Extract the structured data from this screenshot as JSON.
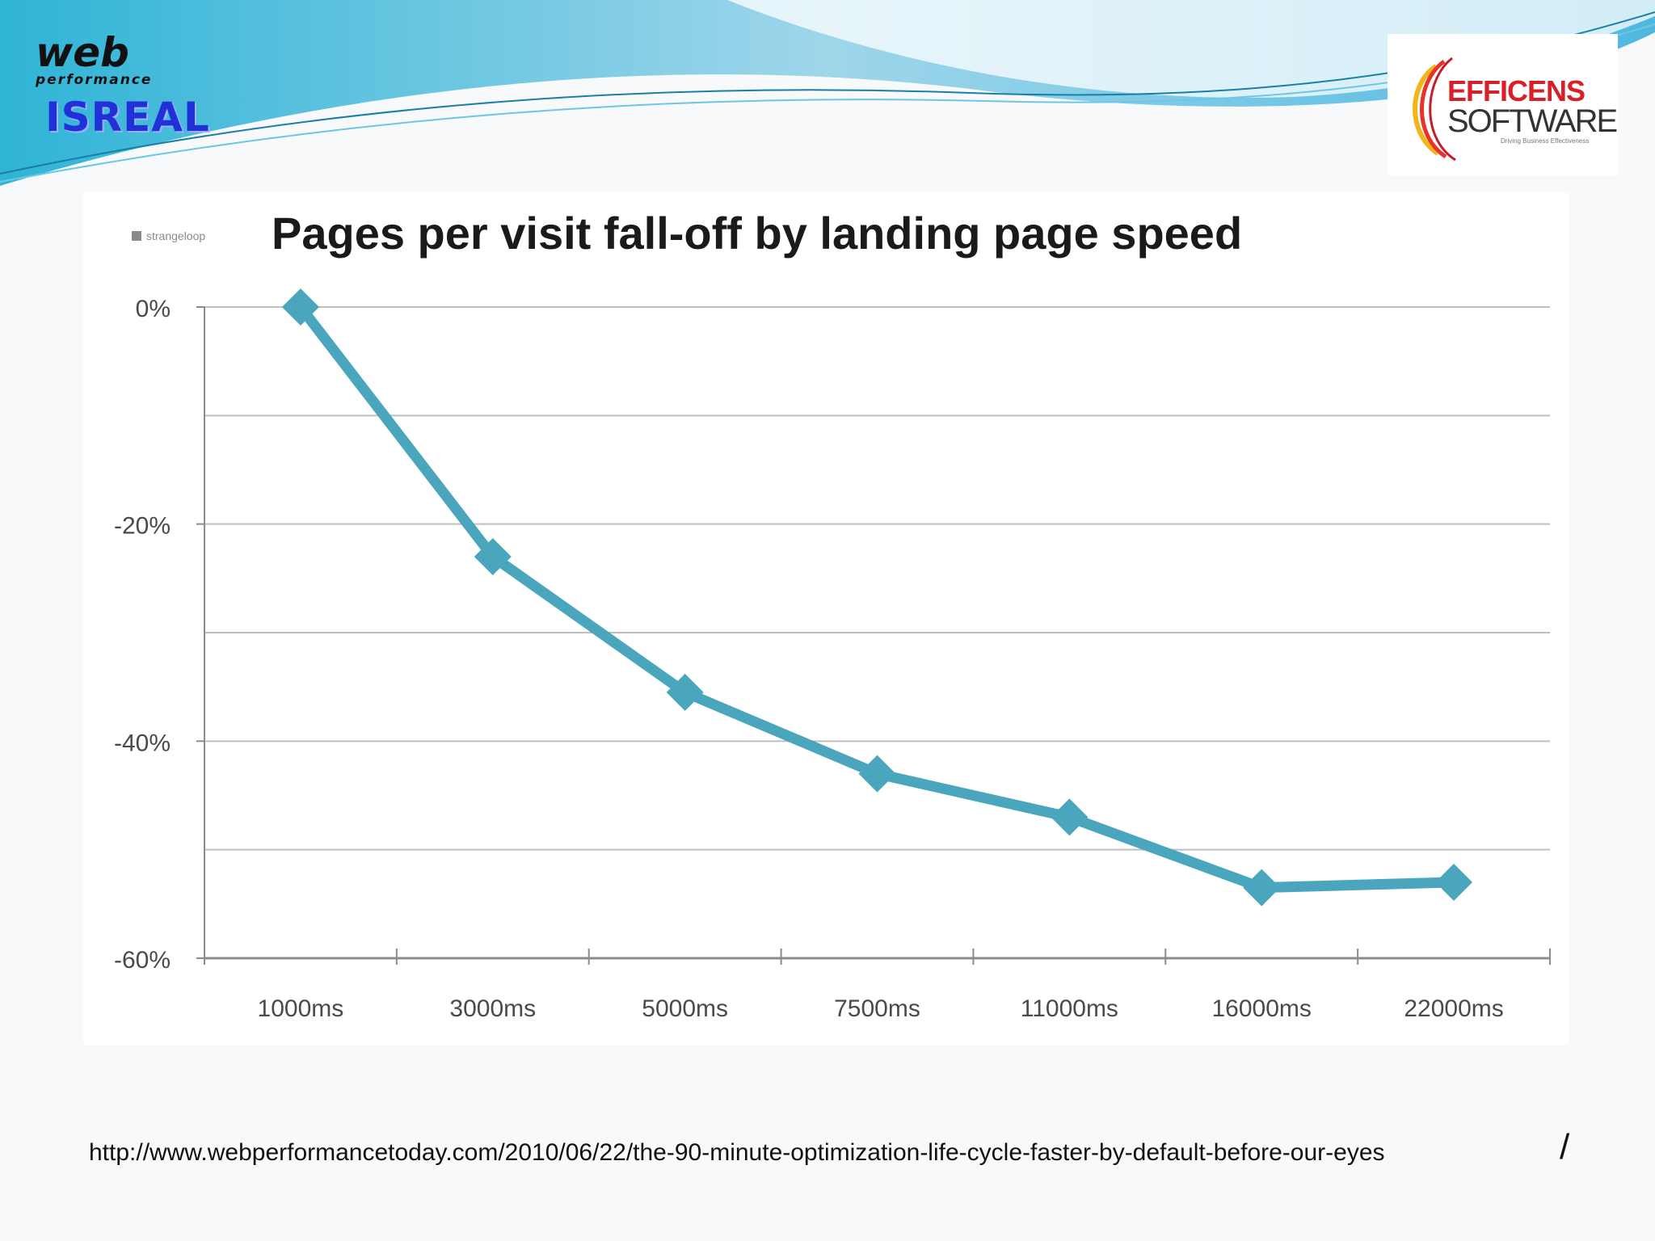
{
  "header": {
    "logo_left": {
      "wordmark": "web",
      "tagline": "performance",
      "subtitle": "ISREAL"
    },
    "logo_right": {
      "name": "EFFICENS",
      "sub": "SOFTWARE",
      "tagline": "Driving Business Effectiveness"
    }
  },
  "chart_data": {
    "type": "line",
    "title": "Pages per visit fall-off by landing page speed",
    "source_badge": "strangeloop",
    "categories": [
      "1000ms",
      "3000ms",
      "5000ms",
      "7500ms",
      "11000ms",
      "16000ms",
      "22000ms"
    ],
    "series": [
      {
        "values": [
          0,
          -23,
          -35.5,
          -43,
          -47,
          -53.5,
          -53
        ]
      }
    ],
    "ylim": [
      -60,
      0
    ],
    "yticks": [
      0,
      -20,
      -40,
      -60
    ],
    "ytick_labels": [
      "0%",
      "-20%",
      "-40%",
      "-60%"
    ],
    "minor_gridlines": [
      -10,
      -30,
      -50
    ],
    "grid": true,
    "legend": "none",
    "colors": {
      "line": "#4aa6bc",
      "grid": "#bfbfbf",
      "axis": "#8c8c8c"
    }
  },
  "footer": {
    "url": "http://www.webperformancetoday.com/2010/06/22/the-90-minute-optimization-life-cycle-faster-by-default-before-our-eyes",
    "trailing": "/"
  }
}
